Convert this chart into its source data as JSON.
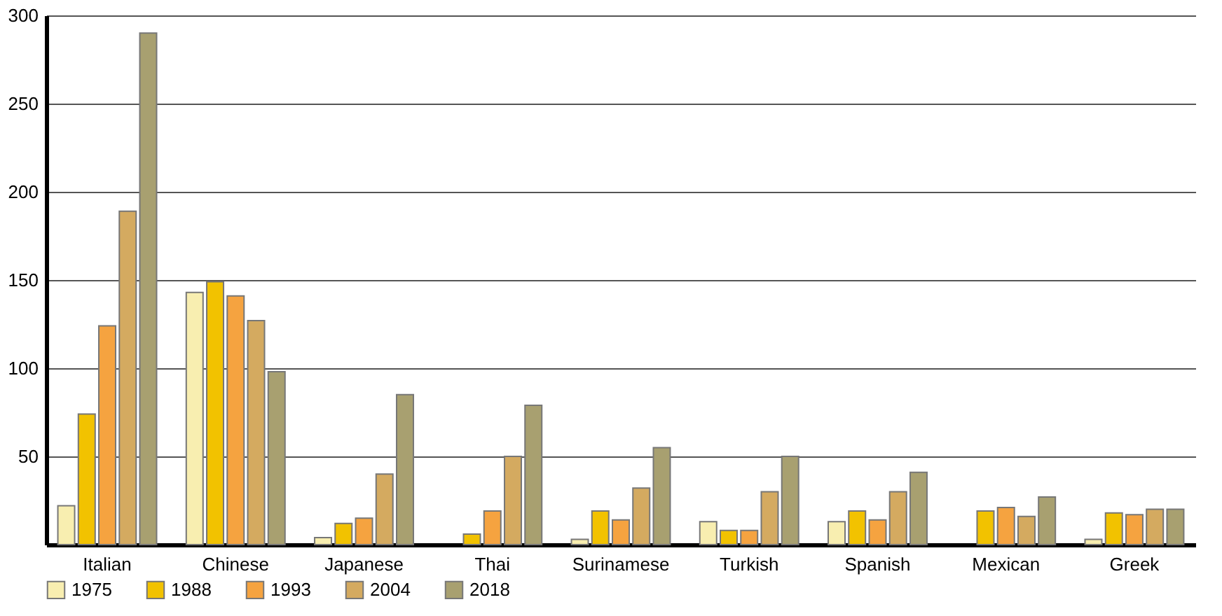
{
  "chart_data": {
    "type": "bar",
    "categories": [
      "Italian",
      "Chinese",
      "Japanese",
      "Thai",
      "Surinamese",
      "Turkish",
      "Spanish",
      "Mexican",
      "Greek"
    ],
    "series": [
      {
        "name": "1975",
        "color": "#f8eeb0",
        "values": [
          22,
          143,
          4,
          null,
          3,
          13,
          13,
          null,
          3
        ]
      },
      {
        "name": "1988",
        "color": "#f2c200",
        "values": [
          74,
          149,
          12,
          6,
          19,
          8,
          19,
          19,
          18
        ]
      },
      {
        "name": "1993",
        "color": "#f5a340",
        "values": [
          124,
          141,
          15,
          19,
          14,
          8,
          14,
          21,
          17
        ]
      },
      {
        "name": "2004",
        "color": "#d4aa60",
        "values": [
          189,
          127,
          40,
          50,
          32,
          30,
          30,
          16,
          20
        ]
      },
      {
        "name": "2018",
        "color": "#a8a070",
        "values": [
          290,
          98,
          85,
          79,
          55,
          50,
          41,
          27,
          20
        ]
      }
    ],
    "ylim": [
      0,
      300
    ],
    "yticks": [
      50,
      100,
      150,
      200,
      250,
      300
    ],
    "grid": "y",
    "legend": "bottom"
  }
}
